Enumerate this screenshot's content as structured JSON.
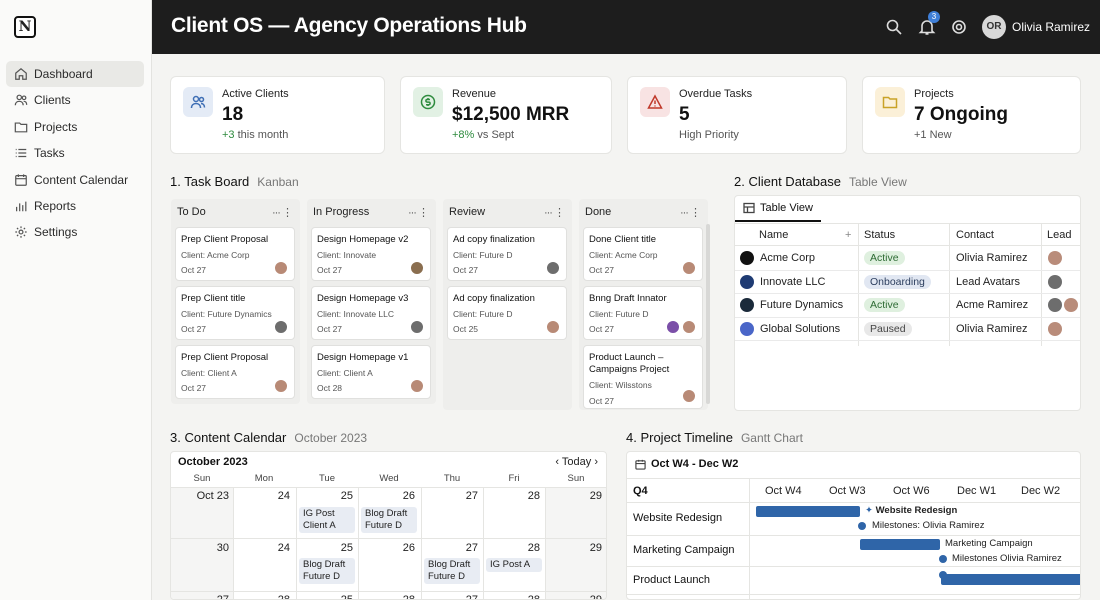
{
  "app": {
    "logo": "N"
  },
  "header": {
    "title": "Client OS — Agency Operations Hub",
    "notification_count": "3",
    "user_initials": "OR",
    "user_name": "Olivia Ramirez"
  },
  "sidebar": {
    "items": [
      {
        "label": "Dashboard",
        "icon": "home-icon",
        "active": true
      },
      {
        "label": "Clients",
        "icon": "users-icon"
      },
      {
        "label": "Projects",
        "icon": "folder-icon"
      },
      {
        "label": "Tasks",
        "icon": "list-icon"
      },
      {
        "label": "Content Calendar",
        "icon": "calendar-icon"
      },
      {
        "label": "Reports",
        "icon": "bar-chart-icon"
      },
      {
        "label": "Settings",
        "icon": "gear-icon"
      }
    ]
  },
  "stats": [
    {
      "label": "Active Clients",
      "value": "18",
      "delta": "+3",
      "sub": " this month",
      "icon": "users-icon",
      "color": "#3f6fb5"
    },
    {
      "label": "Revenue",
      "value": "$12,500 MRR",
      "delta": "+8%",
      "sub": " vs Sept",
      "icon": "dollar-icon",
      "color": "#2e8b3e"
    },
    {
      "label": "Overdue Tasks",
      "value": "5",
      "delta": "",
      "sub": "High Priority",
      "icon": "warning-icon",
      "color": "#c0392b"
    },
    {
      "label": "Projects",
      "value": "7 Ongoing",
      "delta": "",
      "sub": "+1 New",
      "icon": "folder-icon",
      "color": "#c9a227"
    }
  ],
  "task_board": {
    "title": "1. Task Board",
    "subtitle": "Kanban",
    "columns": [
      {
        "name": "To Do",
        "cards": [
          {
            "title": "Prep Client Proposal",
            "client": "Client: Acme Corp",
            "date": "Oct 27"
          },
          {
            "title": "Prep Client title",
            "client": "Client: Future Dynamics",
            "date": "Oct 27"
          },
          {
            "title": "Prep Client Proposal",
            "client": "Client: Client A",
            "date": "Oct 27"
          }
        ]
      },
      {
        "name": "In Progress",
        "cards": [
          {
            "title": "Design Homepage v2",
            "client": "Client: Innovate",
            "date": "Oct 27"
          },
          {
            "title": "Design Homepage v3",
            "client": "Client: Innovate LLC",
            "date": "Oct 27"
          },
          {
            "title": "Design Homepage v1",
            "client": "Client: Client A",
            "date": "Oct 28"
          }
        ]
      },
      {
        "name": "Review",
        "cards": [
          {
            "title": "Ad copy finalization",
            "client": "Client: Future D",
            "date": "Oct 27"
          },
          {
            "title": "Ad copy finalization",
            "client": "Client: Future D",
            "date": "Oct 25"
          }
        ]
      },
      {
        "name": "Done",
        "cards": [
          {
            "title": "Done Client title",
            "client": "Client: Acme Corp",
            "date": "Oct 27"
          },
          {
            "title": "Bnng Draft Innator",
            "client": "Client: Future D",
            "date": "Oct 27"
          },
          {
            "title": "Product Launch – Campaigns Project",
            "client": "Client: Wilsstons",
            "date": "Oct 27"
          }
        ]
      }
    ]
  },
  "client_db": {
    "title": "2. Client Database",
    "subtitle": "Table View",
    "tab": "Table View",
    "headers": {
      "name": "Name",
      "status": "Status",
      "contact": "Contact",
      "lead": "Lead"
    },
    "rows": [
      {
        "name": "Acme Corp",
        "status": "Active",
        "contact": "Olivia Ramirez",
        "logo_color": "#111111"
      },
      {
        "name": "Innovate LLC",
        "status": "Onboarding",
        "contact": "Lead Avatars",
        "logo_color": "#1f3b73"
      },
      {
        "name": "Future Dynamics",
        "status": "Active",
        "contact": "Acme Ramirez",
        "logo_color": "#1b2a3a"
      },
      {
        "name": "Global Solutions",
        "status": "Paused",
        "contact": "Olivia Ramirez",
        "logo_color": "#4a66c8"
      }
    ]
  },
  "calendar": {
    "title": "3. Content Calendar",
    "subtitle": "October 2023",
    "month": "October 2023",
    "today": "Today",
    "dow": [
      "Sun",
      "Mon",
      "Tue",
      "Wed",
      "Thu",
      "Fri",
      "Sun"
    ],
    "week1": [
      "Oct 23",
      "24",
      "25",
      "26",
      "27",
      "28",
      "29"
    ],
    "week2": [
      "30",
      "24",
      "25",
      "26",
      "27",
      "28",
      "29"
    ],
    "week3": [
      "27",
      "28",
      "25",
      "28",
      "27",
      "28",
      "29"
    ],
    "events": [
      {
        "text": "IG Post Client A"
      },
      {
        "text": "Blog Draft Future D"
      },
      {
        "text": "Blog Draft Future D"
      },
      {
        "text": "Blog Draft Future D"
      },
      {
        "text": "IG Post A"
      }
    ]
  },
  "timeline": {
    "title": "4. Project Timeline",
    "subtitle": "Gantt Chart",
    "range": "Oct W4 - Dec W2",
    "quarter": "Q4",
    "weeks": [
      "Oct W4",
      "Oct W3",
      "Oct W6",
      "Dec W1",
      "Dec W2"
    ],
    "tasks": [
      {
        "name": "Website Redesign",
        "bar_label": "Website Redesign",
        "milestone": "Milestones: Olivia Ramirez"
      },
      {
        "name": "Marketing Campaign",
        "bar_label": "Marketing Campaign",
        "milestone": "Milestones Olivia Ramirez"
      },
      {
        "name": "Product Launch"
      }
    ]
  }
}
